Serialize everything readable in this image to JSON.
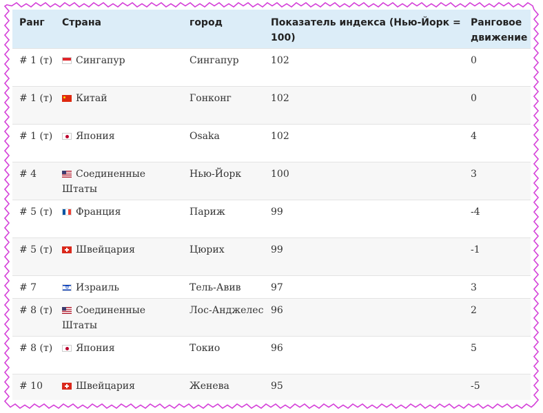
{
  "header": {
    "rank": "Ранг",
    "country": "Страна",
    "city": "город",
    "index": "Показатель индекса (Нью-Йорк = 100)",
    "movement": "Ранговое движение"
  },
  "rows": [
    {
      "rank": "# 1 (т)",
      "flag": "singapore-flag-icon",
      "country": "Сингапур",
      "city": "Сингапур",
      "index": "102",
      "movement": "0"
    },
    {
      "rank": "# 1 (т)",
      "flag": "china-flag-icon",
      "country": "Китай",
      "city": "Гонконг",
      "index": "102",
      "movement": "0"
    },
    {
      "rank": "# 1 (т)",
      "flag": "japan-flag-icon",
      "country": "Япония",
      "city": "Osaka",
      "index": "102",
      "movement": "4"
    },
    {
      "rank": "# 4",
      "flag": "usa-flag-icon",
      "country": "Соединенные Штаты",
      "city": "Нью-Йорк",
      "index": "100",
      "movement": "3"
    },
    {
      "rank": "# 5 (т)",
      "flag": "france-flag-icon",
      "country": "Франция",
      "city": "Париж",
      "index": "99",
      "movement": "-4"
    },
    {
      "rank": "# 5 (т)",
      "flag": "switzerland-flag-icon",
      "country": "Швейцария",
      "city": "Цюрих",
      "index": "99",
      "movement": "-1"
    },
    {
      "rank": "# 7",
      "flag": "israel-flag-icon",
      "country": "Израиль",
      "city": "Тель-Авив",
      "index": "97",
      "movement": "3"
    },
    {
      "rank": "# 8 (т)",
      "flag": "usa-flag-icon",
      "country": "Соединенные Штаты",
      "city": "Лос-Анджелес",
      "index": "96",
      "movement": "2"
    },
    {
      "rank": "# 8 (т)",
      "flag": "japan-flag-icon",
      "country": "Япония",
      "city": "Токио",
      "index": "96",
      "movement": "5"
    },
    {
      "rank": "# 10",
      "flag": "switzerland-flag-icon",
      "country": "Швейцария",
      "city": "Женева",
      "index": "95",
      "movement": "-5"
    }
  ]
}
